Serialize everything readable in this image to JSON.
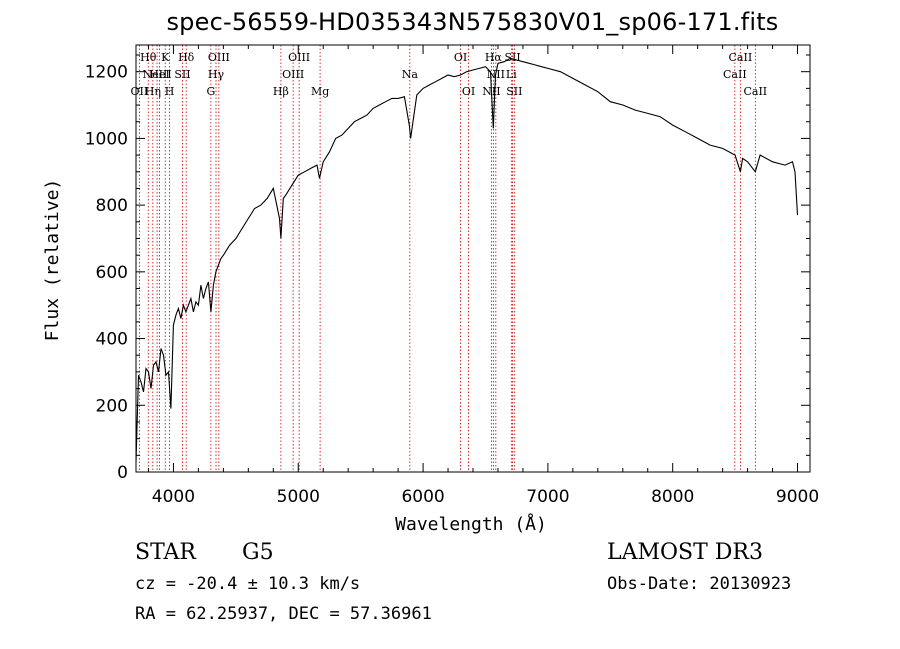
{
  "chart_data": {
    "type": "line",
    "title": "spec-56559-HD035343N575830V01_sp06-171.fits",
    "xlabel": "Wavelength (Å)",
    "ylabel": "Flux (relative)",
    "xlim": [
      3700,
      9100
    ],
    "ylim": [
      0,
      1280
    ],
    "xticks": [
      4000,
      5000,
      6000,
      7000,
      8000,
      9000
    ],
    "yticks": [
      0,
      200,
      400,
      600,
      800,
      1000,
      1200
    ],
    "grid": false,
    "line_color": "#000000",
    "marker_color": "#cc0000",
    "series": [
      {
        "x": [
          3700,
          3720,
          3740,
          3760,
          3780,
          3800,
          3820,
          3840,
          3860,
          3880,
          3900,
          3920,
          3940,
          3960,
          3980,
          4000,
          4020,
          4040,
          4060,
          4080,
          4100,
          4120,
          4140,
          4160,
          4180,
          4200,
          4220,
          4240,
          4260,
          4280,
          4300,
          4320,
          4340,
          4360,
          4380,
          4400,
          4450,
          4500,
          4550,
          4600,
          4650,
          4700,
          4750,
          4800,
          4850,
          4861,
          4880,
          4900,
          4950,
          5000,
          5050,
          5100,
          5150,
          5170,
          5200,
          5250,
          5300,
          5350,
          5400,
          5450,
          5500,
          5550,
          5600,
          5650,
          5700,
          5750,
          5800,
          5850,
          5890,
          5900,
          5950,
          6000,
          6050,
          6100,
          6150,
          6200,
          6250,
          6300,
          6350,
          6400,
          6450,
          6500,
          6540,
          6563,
          6580,
          6600,
          6650,
          6700,
          6750,
          6800,
          6850,
          6900,
          6950,
          7000,
          7100,
          7200,
          7300,
          7400,
          7500,
          7600,
          7700,
          7800,
          7900,
          8000,
          8100,
          8200,
          8300,
          8400,
          8500,
          8542,
          8560,
          8600,
          8662,
          8700,
          8800,
          8900,
          8960,
          8980,
          9000
        ],
        "y": [
          30,
          290,
          270,
          240,
          310,
          300,
          250,
          320,
          330,
          300,
          370,
          350,
          290,
          300,
          190,
          440,
          470,
          490,
          460,
          500,
          480,
          500,
          520,
          480,
          510,
          500,
          560,
          520,
          550,
          570,
          480,
          560,
          600,
          620,
          640,
          650,
          680,
          700,
          730,
          760,
          790,
          800,
          820,
          850,
          760,
          700,
          820,
          830,
          860,
          890,
          900,
          910,
          920,
          880,
          930,
          960,
          1000,
          1010,
          1030,
          1050,
          1060,
          1070,
          1090,
          1100,
          1110,
          1120,
          1120,
          1125,
          1040,
          1000,
          1130,
          1150,
          1160,
          1170,
          1180,
          1190,
          1185,
          1190,
          1200,
          1205,
          1210,
          1215,
          1200,
          1030,
          1190,
          1225,
          1230,
          1240,
          1235,
          1230,
          1225,
          1220,
          1215,
          1210,
          1200,
          1180,
          1160,
          1140,
          1110,
          1100,
          1085,
          1075,
          1065,
          1040,
          1020,
          1000,
          980,
          970,
          950,
          900,
          940,
          930,
          900,
          950,
          930,
          920,
          930,
          900,
          770
        ]
      }
    ],
    "line_markers": [
      {
        "x": 3727,
        "label": "OII",
        "row": 2
      },
      {
        "x": 3798,
        "label": "Hθ",
        "row": 0
      },
      {
        "x": 3835,
        "label": "Hη",
        "row": 2
      },
      {
        "x": 3869,
        "label": "NeIII",
        "row": 1
      },
      {
        "x": 3889,
        "label": "HeI",
        "row": 1
      },
      {
        "x": 3934,
        "label": "K",
        "row": 0
      },
      {
        "x": 3969,
        "label": "H",
        "row": 2
      },
      {
        "x": 4072,
        "label": "SII",
        "row": 1
      },
      {
        "x": 4102,
        "label": "Hδ",
        "row": 0
      },
      {
        "x": 4300,
        "label": "G",
        "row": 2
      },
      {
        "x": 4341,
        "label": "Hγ",
        "row": 1
      },
      {
        "x": 4364,
        "label": "OIII",
        "row": 0
      },
      {
        "x": 4861,
        "label": "Hβ",
        "row": 2
      },
      {
        "x": 4959,
        "label": "OIII",
        "row": 1
      },
      {
        "x": 5007,
        "label": "OIII",
        "row": 0
      },
      {
        "x": 5175,
        "label": "Mg",
        "row": 2
      },
      {
        "x": 5894,
        "label": "Na",
        "row": 1
      },
      {
        "x": 6300,
        "label": "OI",
        "row": 0
      },
      {
        "x": 6364,
        "label": "OI",
        "row": 2
      },
      {
        "x": 6548,
        "label": "NII",
        "row": 2
      },
      {
        "x": 6563,
        "label": "Hα",
        "row": 0
      },
      {
        "x": 6583,
        "label": "NII",
        "row": 1
      },
      {
        "x": 6707,
        "label": "Li",
        "row": 1
      },
      {
        "x": 6717,
        "label": "SII",
        "row": 0
      },
      {
        "x": 6731,
        "label": "SII",
        "row": 2
      },
      {
        "x": 8498,
        "label": "CaII",
        "row": 1
      },
      {
        "x": 8542,
        "label": "CaII",
        "row": 0
      },
      {
        "x": 8662,
        "label": "CaII",
        "row": 2
      }
    ]
  },
  "info": {
    "object_class": "STAR",
    "subclass": "G5",
    "survey": "LAMOST DR3",
    "cz": "cz = -20.4 ± 10.3 km/s",
    "obs_date": "Obs-Date: 20130923",
    "coords": "RA =  62.25937, DEC =  57.36961"
  }
}
